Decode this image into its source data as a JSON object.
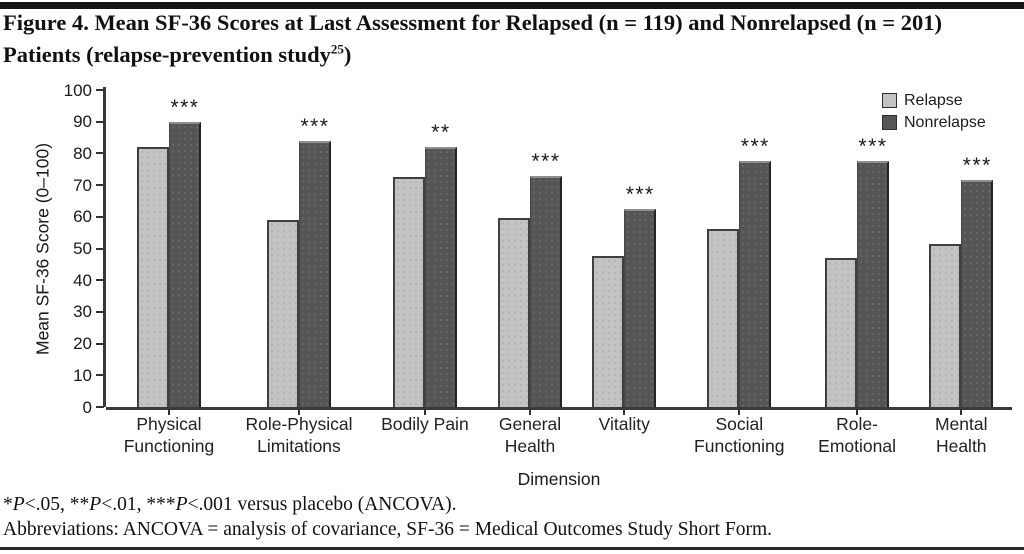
{
  "figure": {
    "title_line1": "Figure 4. Mean SF-36 Scores at Last Assessment for Relapsed (n = 119) and Nonrelapsed (n = 201)",
    "title_line2_pre": "Patients (relapse-prevention study",
    "title_superscript": "25",
    "title_line2_post": ")"
  },
  "legend": {
    "items": [
      {
        "label": "Relapse",
        "color": "#c3c3c3"
      },
      {
        "label": "Nonrelapse",
        "color": "#555555"
      }
    ]
  },
  "chart_data": {
    "type": "bar",
    "title": "Mean SF-36 Scores at Last Assessment for Relapsed (n = 119) and Nonrelapsed (n = 201) Patients",
    "xlabel": "Dimension",
    "ylabel": "Mean SF-36 Score (0–100)",
    "ylim": [
      0,
      100
    ],
    "yticks": [
      0,
      10,
      20,
      30,
      40,
      50,
      60,
      70,
      80,
      90,
      100
    ],
    "grid": false,
    "legend_position": "top-right",
    "categories": [
      "Physical Functioning",
      "Role-Physical Limitations",
      "Bodily Pain",
      "General Health",
      "Vitality",
      "Social Functioning",
      "Role-Emotional",
      "Mental Health"
    ],
    "category_label_lines": [
      [
        "Physical",
        "Functioning"
      ],
      [
        "Role-Physical",
        "Limitations"
      ],
      [
        "Bodily Pain"
      ],
      [
        "General",
        "Health"
      ],
      [
        "Vitality"
      ],
      [
        "Social",
        "Functioning"
      ],
      [
        "Role-",
        "Emotional"
      ],
      [
        "Mental",
        "Health"
      ]
    ],
    "series": [
      {
        "name": "Relapse",
        "color": "#c3c3c3",
        "values": [
          82,
          59,
          72.5,
          59.5,
          47.5,
          56,
          47,
          51.5
        ]
      },
      {
        "name": "Nonrelapse",
        "color": "#555555",
        "values": [
          90,
          84,
          82,
          73,
          62.5,
          77.5,
          77.5,
          71.5
        ]
      }
    ],
    "significance_markers": [
      "***",
      "***",
      "**",
      "***",
      "***",
      "***",
      "***",
      "***"
    ],
    "group_centers_pct": [
      6.95,
      21.3,
      35.2,
      46.8,
      57.2,
      69.9,
      82.9,
      94.4
    ]
  },
  "footnotes": {
    "line1": {
      "s1": "*",
      "p1": "P",
      "r1": "<.05, ",
      "s2": "**",
      "p2": "P",
      "r2": "<.01, ",
      "s3": "***",
      "p3": "P",
      "r3": "<.001 versus placebo (ANCOVA)."
    },
    "line2": "Abbreviations: ANCOVA = analysis of covariance, SF-36 = Medical Outcomes Study Short Form."
  }
}
